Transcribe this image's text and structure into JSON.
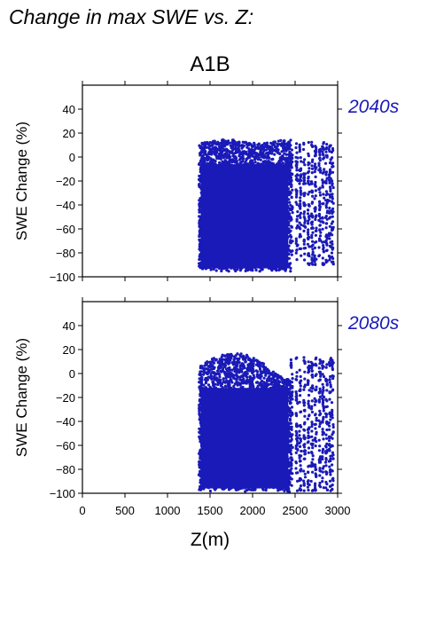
{
  "figure": {
    "title": "Change in max SWE vs. Z:",
    "scenario": "A1B"
  },
  "colors": {
    "points": "#1a1ab8",
    "period_label": "#1a1ab8"
  },
  "chart_data": [
    {
      "type": "scatter",
      "period": "2040s",
      "ylabel": "SWE Change (%)",
      "xlabel": "",
      "xlim": [
        0,
        3000
      ],
      "ylim": [
        -100,
        60
      ],
      "xticks": [
        0,
        500,
        1000,
        1500,
        2000,
        2500,
        3000
      ],
      "yticks": [
        -100,
        -80,
        -60,
        -40,
        -20,
        0,
        20,
        40
      ],
      "series": [
        {
          "description": "dense cloud",
          "x_range": [
            1370,
            2450
          ],
          "y_range": [
            -96,
            14
          ]
        },
        {
          "description": "sparse columns",
          "x_range": [
            2450,
            2950
          ],
          "y_range": [
            -90,
            13
          ]
        }
      ]
    },
    {
      "type": "scatter",
      "period": "2080s",
      "ylabel": "SWE Change (%)",
      "xlabel": "Z(m)",
      "xlim": [
        0,
        3000
      ],
      "ylim": [
        -100,
        60
      ],
      "xticks": [
        0,
        500,
        1000,
        1500,
        2000,
        2500,
        3000
      ],
      "xticklabels": [
        "0",
        "500",
        "1000",
        "1500",
        "2000",
        "2500",
        "3000"
      ],
      "yticks": [
        -100,
        -80,
        -60,
        -40,
        -20,
        0,
        20,
        40
      ],
      "series": [
        {
          "description": "dense cloud",
          "x_range": [
            1370,
            2450
          ],
          "y_range": [
            -99,
            17
          ]
        },
        {
          "description": "sparse columns",
          "x_range": [
            2450,
            2950
          ],
          "y_range": [
            -98,
            14
          ]
        }
      ]
    }
  ]
}
